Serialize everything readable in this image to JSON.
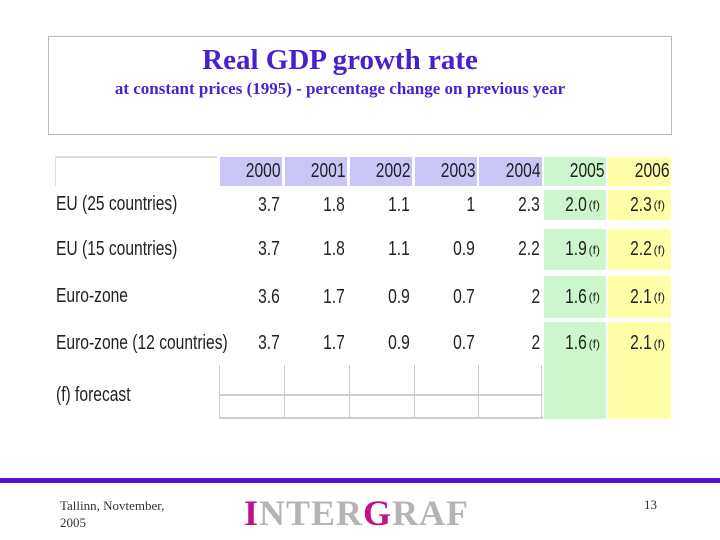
{
  "title": "Real GDP growth rate",
  "subtitle": "at constant prices (1995) - percentage change on previous year",
  "table": {
    "years": [
      "2000",
      "2001",
      "2002",
      "2003",
      "2004",
      "2005",
      "2006"
    ],
    "rows": [
      {
        "label": "EU (25 countries)",
        "values": [
          "3.7",
          "1.8",
          "1.1",
          "1",
          "2.3",
          "2.0",
          "2.3"
        ]
      },
      {
        "label": "EU (15 countries)",
        "values": [
          "3.7",
          "1.8",
          "1.1",
          "0.9",
          "2.2",
          "1.9",
          "2.2"
        ]
      },
      {
        "label": "Euro-zone",
        "values": [
          "3.6",
          "1.7",
          "0.9",
          "0.7",
          "2",
          "1.6",
          "2.1"
        ]
      },
      {
        "label": "Euro-zone (12 countries)",
        "values": [
          "3.7",
          "1.7",
          "0.9",
          "0.7",
          "2",
          "1.6",
          "2.1"
        ]
      }
    ],
    "forecast_marker": "(f)",
    "footnote": "(f) forecast",
    "colors": {
      "header": "#c9c6f7",
      "col_2005": "#ccf7cc",
      "col_2006": "#ffffa8"
    }
  },
  "footer": {
    "place_line1": "Tallinn, Novtember,",
    "place_line2": "2005",
    "logo_first": "I",
    "logo_mid": "NTER",
    "logo_g": "G",
    "logo_end": "RAF",
    "page": "13",
    "rule_color": "#5a10d8"
  }
}
